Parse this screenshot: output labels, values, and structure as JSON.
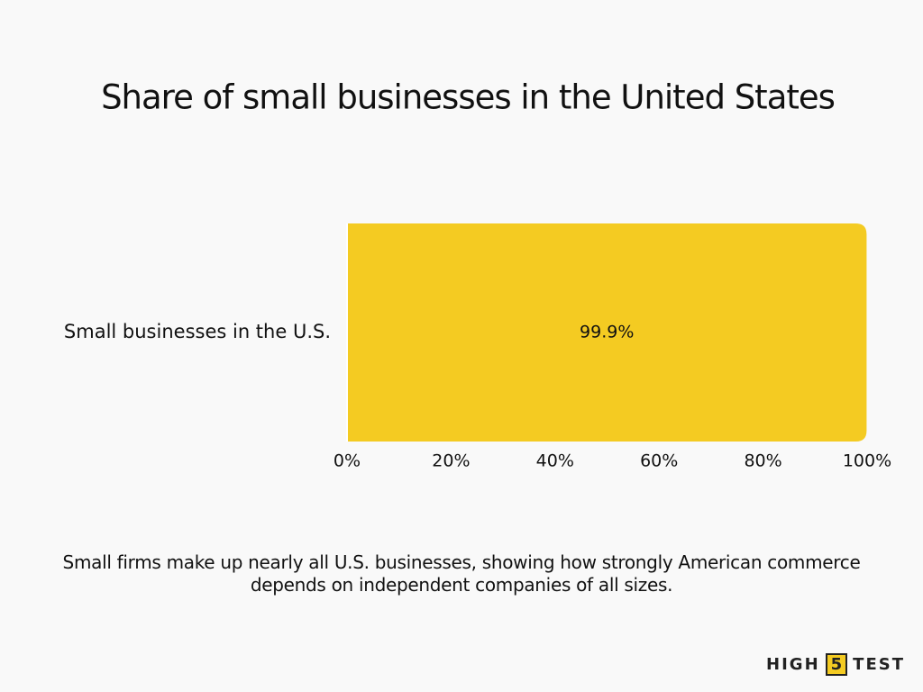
{
  "chart_data": {
    "type": "bar",
    "orientation": "horizontal",
    "title": "Share of small businesses in the United States",
    "categories": [
      "Small businesses in the U.S."
    ],
    "values": [
      99.9
    ],
    "value_labels": [
      "99.9%"
    ],
    "color": "#f4cb22",
    "xlim": [
      0,
      100
    ],
    "xticks": [
      {
        "value": 0,
        "label": "0%"
      },
      {
        "value": 20,
        "label": "20%"
      },
      {
        "value": 40,
        "label": "40%"
      },
      {
        "value": 60,
        "label": "60%"
      },
      {
        "value": 80,
        "label": "80%"
      },
      {
        "value": 100,
        "label": "100%"
      }
    ],
    "grid": false,
    "caption": "Small firms make up nearly all U.S. businesses, showing how strongly American commerce depends on independent companies of all sizes."
  },
  "logo": {
    "parts": [
      "HIGH",
      "5",
      "TEST"
    ]
  }
}
